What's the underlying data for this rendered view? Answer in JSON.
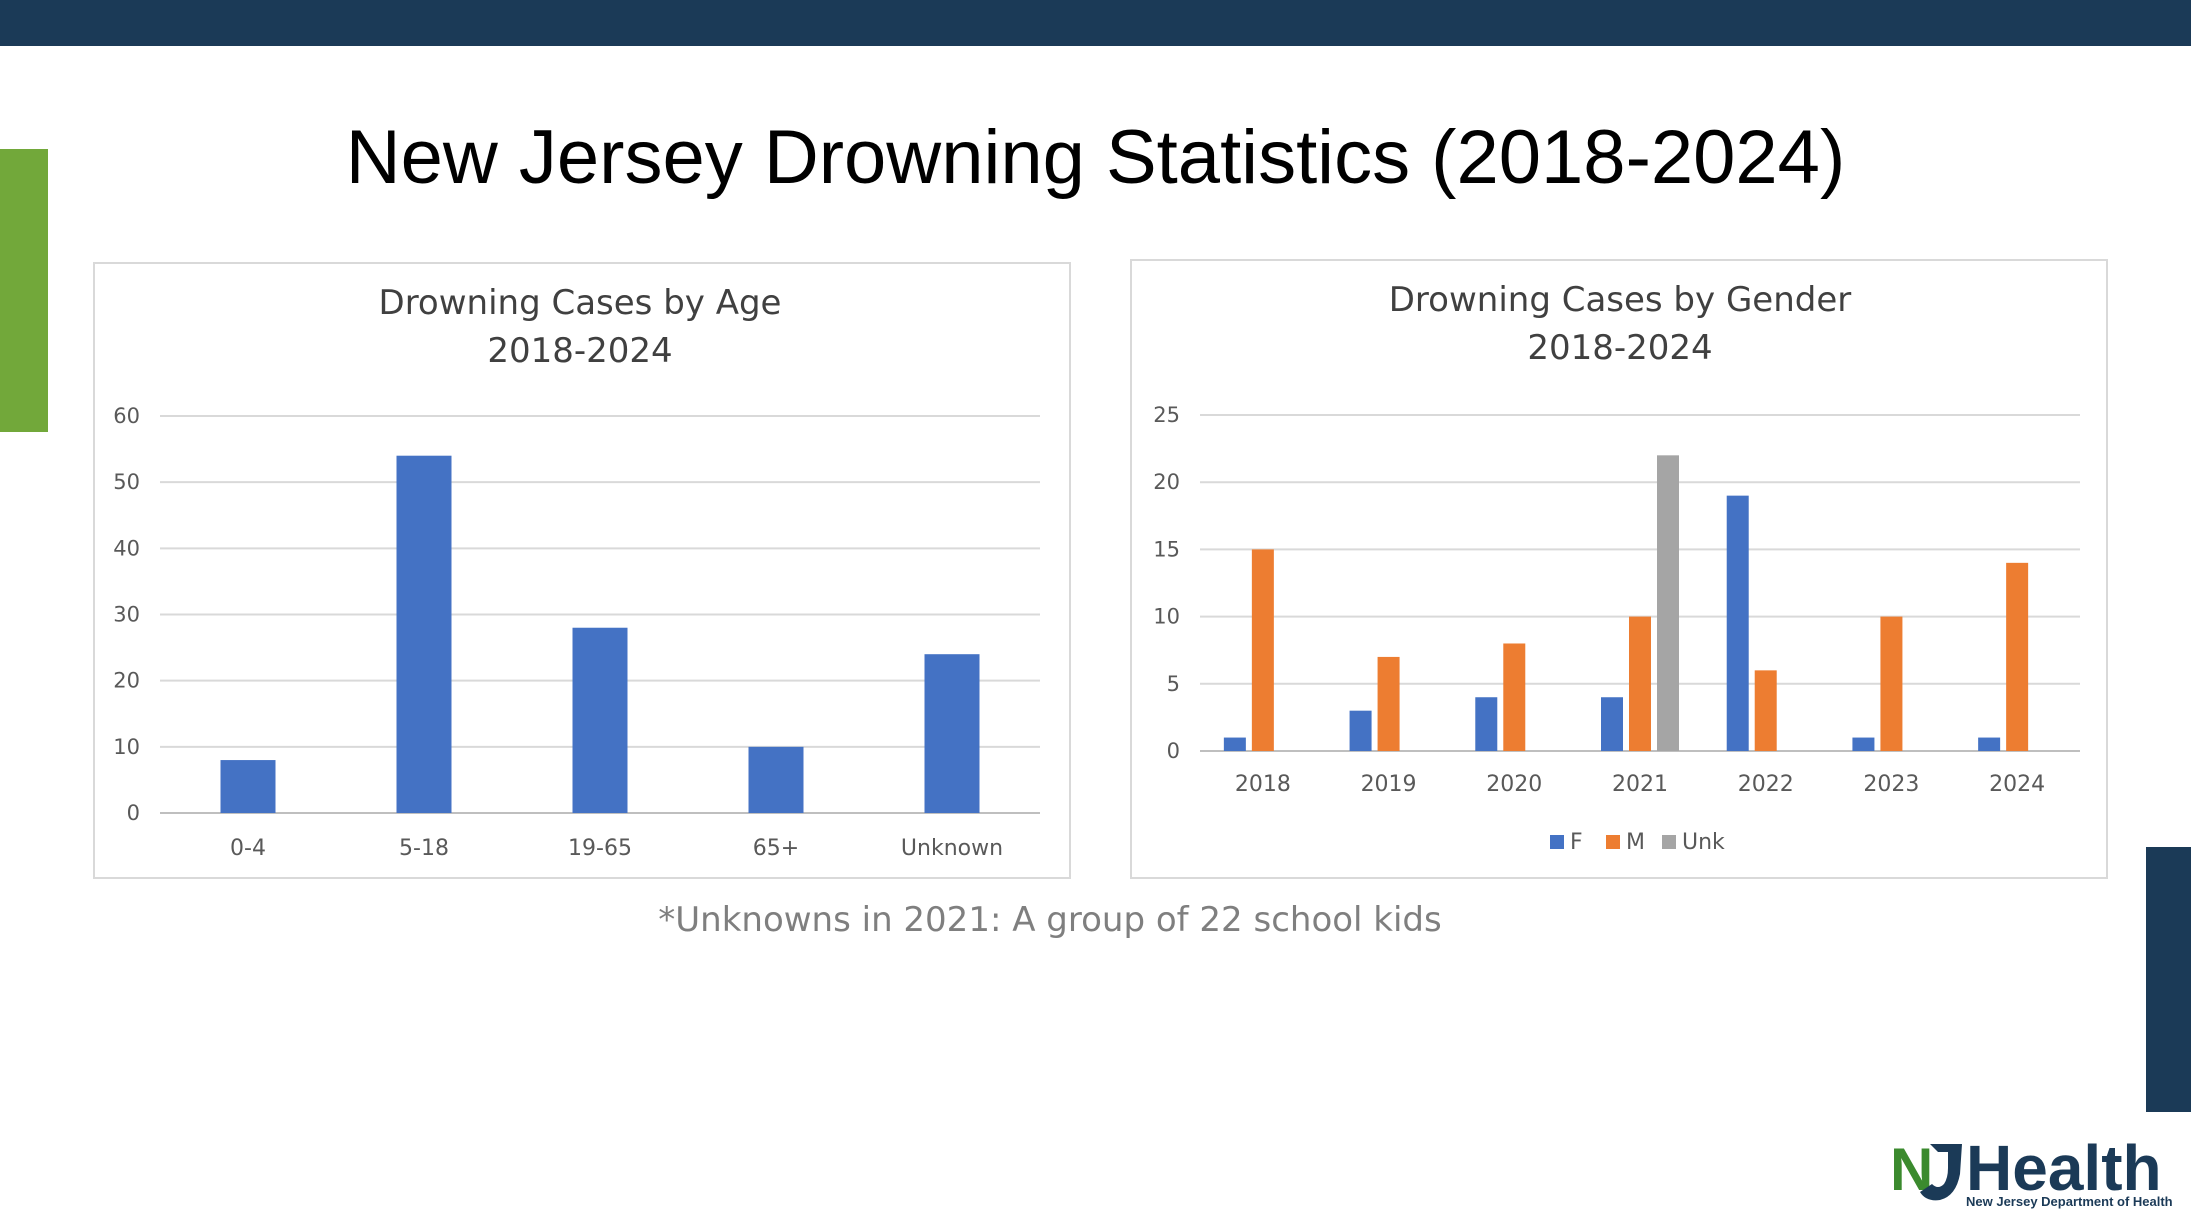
{
  "slide": {
    "title": "New Jersey Drowning Statistics (2018-2024)",
    "footnote": "*Unknowns in 2021: A group of 22 school kids",
    "colors": {
      "top_bar": "#1b3a57",
      "green_accent": "#72a83a",
      "navy_accent": "#1b3a57"
    }
  },
  "logo": {
    "brand_text": "Health",
    "brand_prefix": "NJ",
    "subtitle": "New Jersey Department of Health"
  },
  "chart_data": [
    {
      "type": "bar",
      "title": "Drowning Cases by Age",
      "subtitle": "2018-2024",
      "categories": [
        "0-4",
        "5-18",
        "19-65",
        "65+",
        "Unknown"
      ],
      "values": [
        8,
        54,
        28,
        10,
        24
      ],
      "series_colors": [
        "#4472c4"
      ],
      "ylim": [
        0,
        60
      ],
      "yticks": [
        0,
        10,
        20,
        30,
        40,
        50,
        60
      ],
      "grid": true,
      "legend": "none"
    },
    {
      "type": "bar",
      "title": "Drowning Cases by Gender",
      "subtitle": "2018-2024",
      "categories": [
        "2018",
        "2019",
        "2020",
        "2021",
        "2022",
        "2023",
        "2024"
      ],
      "series": [
        {
          "name": "F",
          "color": "#4472c4",
          "values": [
            1,
            3,
            4,
            4,
            19,
            1,
            1
          ]
        },
        {
          "name": "M",
          "color": "#ed7d31",
          "values": [
            15,
            7,
            8,
            10,
            6,
            10,
            14
          ]
        },
        {
          "name": "Unk",
          "color": "#a5a5a5",
          "values": [
            0,
            0,
            0,
            22,
            0,
            0,
            0
          ]
        }
      ],
      "ylim": [
        0,
        25
      ],
      "yticks": [
        0,
        5,
        10,
        15,
        20,
        25
      ],
      "grid": true,
      "legend": "bottom"
    }
  ]
}
